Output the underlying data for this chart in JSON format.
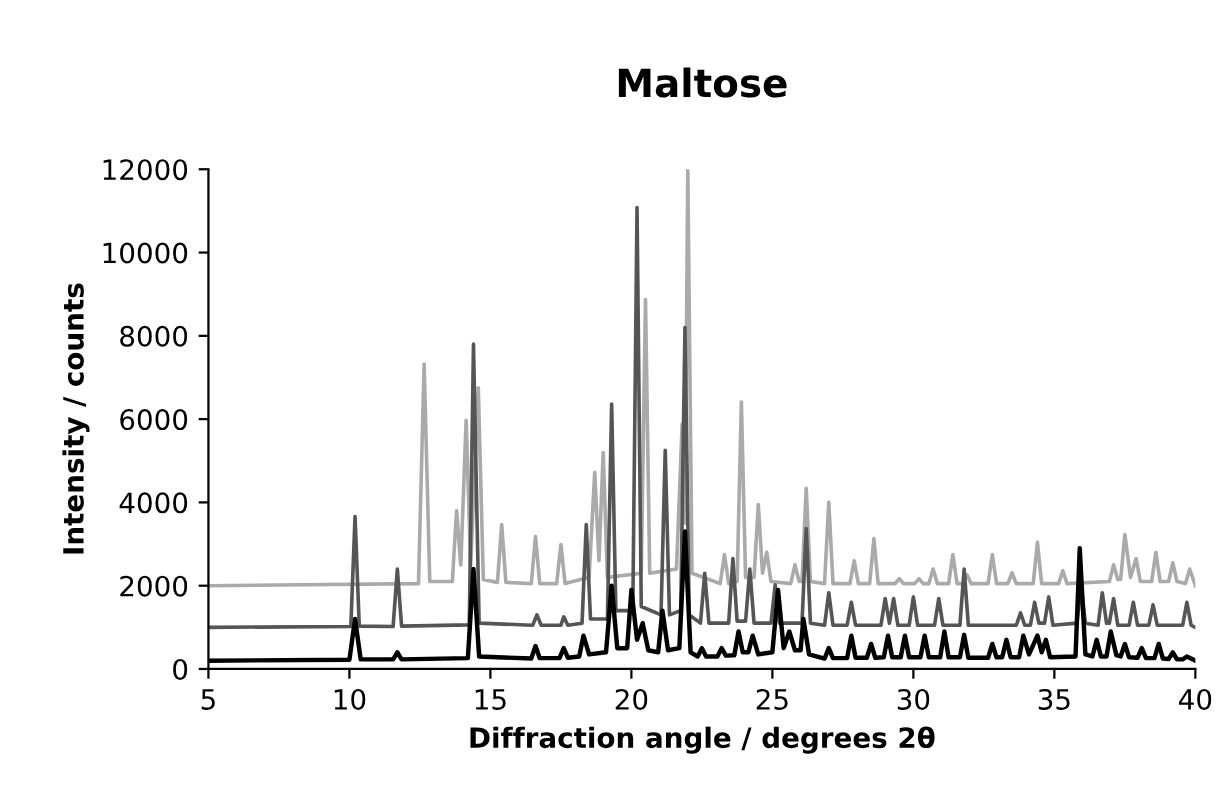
{
  "chart_data": {
    "type": "line",
    "title": "Maltose",
    "xlabel": "Diffraction angle / degrees 2θ",
    "ylabel": "Intensity / counts",
    "xlim": [
      5,
      40
    ],
    "xticks": [
      5,
      10,
      15,
      20,
      25,
      30,
      35,
      40
    ],
    "ylim": [
      0,
      12000
    ],
    "yticks": [
      0,
      2000,
      4000,
      6000,
      8000,
      10000,
      12000
    ],
    "grid": false,
    "legend": false,
    "marker": "none",
    "line_style": "solid",
    "series": [
      {
        "color": "#aaaaaa",
        "x": [
          5,
          12.45,
          12.65,
          12.85,
          13.65,
          13.8,
          13.95,
          14.14,
          14.3,
          14.57,
          14.75,
          15.25,
          15.4,
          15.55,
          16.45,
          16.6,
          16.75,
          17.35,
          17.5,
          17.65,
          18.5,
          18.7,
          18.85,
          19.0,
          19.15,
          20.35,
          20.5,
          20.65,
          21.6,
          21.8,
          21.9,
          22.0,
          22.15,
          23.15,
          23.3,
          23.45,
          23.75,
          23.9,
          24.05,
          24.35,
          24.5,
          24.65,
          24.8,
          24.95,
          25.65,
          25.8,
          25.95,
          26.05,
          26.2,
          26.35,
          26.85,
          27.0,
          27.15,
          27.75,
          27.9,
          28.05,
          28.45,
          28.6,
          28.75,
          29.35,
          29.5,
          29.65,
          30.05,
          30.2,
          30.35,
          30.55,
          30.7,
          30.85,
          31.25,
          31.4,
          31.55,
          31.75,
          31.9,
          32.05,
          32.65,
          32.8,
          32.95,
          33.35,
          33.5,
          33.65,
          34.25,
          34.4,
          34.55,
          35.15,
          35.3,
          35.45,
          36.95,
          37.1,
          37.25,
          37.35,
          37.5,
          37.7,
          37.9,
          38.05,
          38.45,
          38.6,
          38.75,
          39.05,
          39.2,
          39.35,
          39.65,
          39.8,
          40
        ],
        "values": [
          2000,
          2050,
          7320,
          2100,
          2100,
          3800,
          2500,
          5970,
          2500,
          6750,
          2150,
          2080,
          3470,
          2080,
          2050,
          3180,
          2050,
          2050,
          2990,
          2050,
          2200,
          4720,
          2600,
          5200,
          2200,
          2300,
          8870,
          2300,
          2400,
          5880,
          3500,
          12000,
          2300,
          2050,
          2750,
          2050,
          2100,
          6410,
          2200,
          2200,
          3950,
          2300,
          2800,
          2100,
          2050,
          2500,
          2100,
          2100,
          4340,
          2100,
          2050,
          4000,
          2050,
          2050,
          2600,
          2050,
          2050,
          3130,
          2050,
          2050,
          2170,
          2050,
          2050,
          2170,
          2050,
          2050,
          2400,
          2050,
          2050,
          2750,
          2050,
          2050,
          2260,
          2050,
          2050,
          2750,
          2050,
          2050,
          2310,
          2050,
          2050,
          3040,
          2050,
          2050,
          2360,
          2050,
          2100,
          2500,
          2150,
          2150,
          3230,
          2200,
          2650,
          2100,
          2100,
          2800,
          2100,
          2100,
          2550,
          2100,
          2050,
          2400,
          2000
        ]
      },
      {
        "color": "#555555",
        "x": [
          5,
          10.05,
          10.2,
          10.35,
          11.55,
          11.7,
          11.85,
          14.25,
          14.4,
          14.6,
          16.5,
          16.65,
          16.8,
          17.5,
          17.6,
          17.75,
          18.25,
          18.4,
          18.55,
          19.15,
          19.3,
          19.45,
          20.05,
          20.2,
          20.35,
          21.05,
          21.2,
          21.35,
          21.75,
          21.9,
          22.05,
          22.45,
          22.6,
          22.75,
          23.45,
          23.6,
          23.75,
          24.05,
          24.2,
          24.35,
          24.95,
          25.1,
          25.25,
          26.05,
          26.2,
          26.35,
          26.85,
          27.0,
          27.15,
          27.65,
          27.8,
          27.95,
          28.85,
          29.0,
          29.15,
          29.3,
          29.45,
          29.85,
          30.0,
          30.15,
          30.75,
          30.9,
          31.05,
          31.65,
          31.8,
          31.95,
          33.65,
          33.8,
          33.95,
          34.15,
          34.3,
          34.45,
          34.65,
          34.8,
          34.95,
          35.8,
          35.95,
          36.1,
          36.55,
          36.7,
          36.85,
          36.95,
          37.1,
          37.25,
          37.65,
          37.8,
          37.95,
          38.35,
          38.5,
          38.65,
          39.55,
          39.7,
          39.85,
          40
        ],
        "values": [
          1000,
          1020,
          3660,
          1030,
          1020,
          2400,
          1030,
          1060,
          7800,
          1100,
          1050,
          1300,
          1050,
          1050,
          1250,
          1050,
          1100,
          3470,
          1200,
          1200,
          6360,
          1400,
          1400,
          11080,
          1500,
          1300,
          5250,
          1300,
          1400,
          8200,
          1300,
          1100,
          2300,
          1100,
          1100,
          2650,
          1150,
          1150,
          2400,
          1100,
          1100,
          2020,
          1100,
          1100,
          3370,
          1100,
          1050,
          1830,
          1050,
          1050,
          1600,
          1050,
          1050,
          1690,
          1100,
          1690,
          1050,
          1050,
          1730,
          1050,
          1050,
          1690,
          1050,
          1050,
          2400,
          1050,
          1050,
          1350,
          1050,
          1050,
          1600,
          1100,
          1100,
          1730,
          1050,
          1100,
          2000,
          1100,
          1050,
          1830,
          1100,
          1100,
          1690,
          1050,
          1050,
          1600,
          1050,
          1050,
          1540,
          1050,
          1050,
          1600,
          1050,
          1000
        ]
      },
      {
        "color": "#000000",
        "x": [
          5,
          10.0,
          10.2,
          10.4,
          11.55,
          11.7,
          11.85,
          14.2,
          14.4,
          14.6,
          16.45,
          16.6,
          16.75,
          17.45,
          17.6,
          17.75,
          18.15,
          18.3,
          18.5,
          19.1,
          19.3,
          19.5,
          19.85,
          20.0,
          20.2,
          20.4,
          20.6,
          20.95,
          21.1,
          21.3,
          21.7,
          21.9,
          22.1,
          22.35,
          22.5,
          22.65,
          23.05,
          23.2,
          23.35,
          23.65,
          23.8,
          23.95,
          24.15,
          24.3,
          24.5,
          25.0,
          25.2,
          25.4,
          25.6,
          25.8,
          26.0,
          26.1,
          26.3,
          26.85,
          27.0,
          27.15,
          27.65,
          27.8,
          27.95,
          28.35,
          28.5,
          28.65,
          28.95,
          29.1,
          29.25,
          29.55,
          29.7,
          29.85,
          30.25,
          30.4,
          30.55,
          30.95,
          31.1,
          31.25,
          31.65,
          31.8,
          31.95,
          32.65,
          32.8,
          32.95,
          33.15,
          33.3,
          33.45,
          33.75,
          33.9,
          34.1,
          34.4,
          34.55,
          34.7,
          34.85,
          35.75,
          35.9,
          36.1,
          36.35,
          36.5,
          36.65,
          36.85,
          37.0,
          37.2,
          37.35,
          37.5,
          37.65,
          37.95,
          38.1,
          38.25,
          38.55,
          38.7,
          38.85,
          39.05,
          39.2,
          39.35,
          39.55,
          39.7,
          40
        ],
        "values": [
          200,
          220,
          1200,
          230,
          230,
          400,
          230,
          260,
          2400,
          300,
          250,
          550,
          260,
          260,
          500,
          270,
          300,
          800,
          350,
          400,
          2000,
          500,
          500,
          1900,
          700,
          1100,
          450,
          400,
          1400,
          450,
          500,
          3300,
          400,
          300,
          500,
          300,
          300,
          500,
          320,
          330,
          900,
          400,
          400,
          800,
          350,
          400,
          1900,
          500,
          900,
          450,
          450,
          1200,
          350,
          250,
          500,
          260,
          260,
          800,
          270,
          270,
          600,
          270,
          280,
          800,
          280,
          280,
          800,
          280,
          280,
          800,
          280,
          280,
          900,
          280,
          280,
          820,
          270,
          270,
          600,
          280,
          280,
          700,
          280,
          280,
          800,
          350,
          800,
          400,
          700,
          280,
          300,
          2900,
          350,
          300,
          700,
          300,
          300,
          900,
          330,
          300,
          600,
          280,
          270,
          500,
          260,
          260,
          600,
          250,
          240,
          400,
          230,
          230,
          300,
          200
        ]
      }
    ]
  }
}
